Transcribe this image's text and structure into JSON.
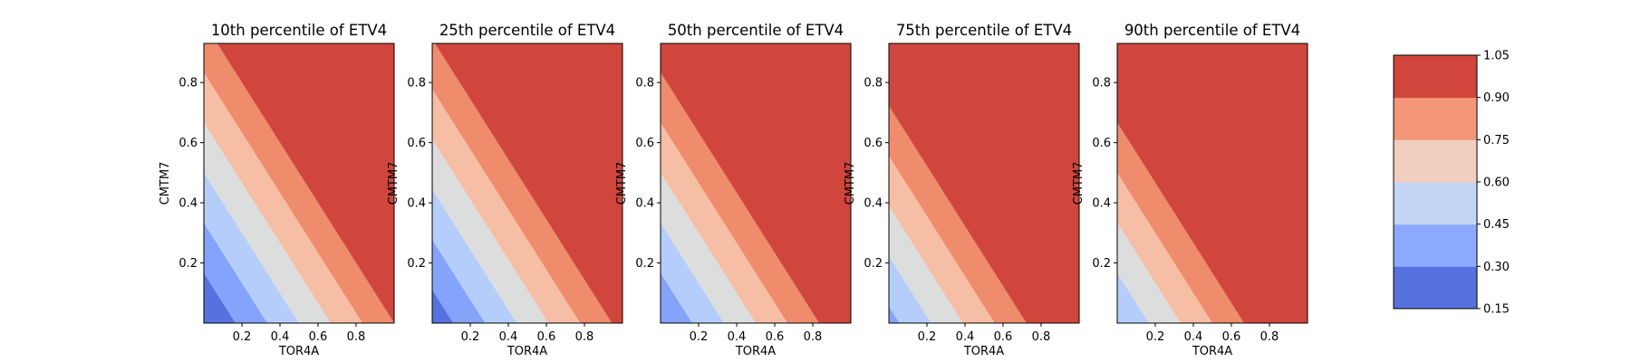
{
  "chart_data": {
    "type": "heatmap",
    "subtype": "filled-contour",
    "grid": false,
    "legend": "colorbar-right",
    "panels": [
      {
        "title": "10th percentile of ETV4",
        "xlabel": "TOR4A",
        "ylabel": "CMTM7",
        "xlim": [
          0.0,
          1.0
        ],
        "ylim": [
          0.0,
          0.93
        ],
        "field": {
          "a": 0.15,
          "bx": 0.9,
          "by": 0.9
        }
      },
      {
        "title": "25th percentile of ETV4",
        "xlabel": "TOR4A",
        "ylabel": "CMTM7",
        "xlim": [
          0.0,
          1.0
        ],
        "ylim": [
          0.0,
          0.93
        ],
        "field": {
          "a": 0.2,
          "bx": 0.9,
          "by": 0.9
        }
      },
      {
        "title": "50th percentile of ETV4",
        "xlabel": "TOR4A",
        "ylabel": "CMTM7",
        "xlim": [
          0.0,
          1.0
        ],
        "ylim": [
          0.0,
          0.93
        ],
        "field": {
          "a": 0.3,
          "bx": 0.9,
          "by": 0.9
        }
      },
      {
        "title": "75th percentile of ETV4",
        "xlabel": "TOR4A",
        "ylabel": "CMTM7",
        "xlim": [
          0.0,
          1.0
        ],
        "ylim": [
          0.0,
          0.93
        ],
        "field": {
          "a": 0.4,
          "bx": 0.9,
          "by": 0.9
        }
      },
      {
        "title": "90th percentile of ETV4",
        "xlabel": "TOR4A",
        "ylabel": "CMTM7",
        "xlim": [
          0.0,
          1.0
        ],
        "ylim": [
          0.0,
          0.93
        ],
        "field": {
          "a": 0.45,
          "bx": 0.9,
          "by": 0.9
        }
      }
    ],
    "xticks": [
      0.2,
      0.4,
      0.6,
      0.8
    ],
    "yticks": [
      0.2,
      0.4,
      0.6,
      0.8
    ],
    "levels": [
      0.15,
      0.3,
      0.45,
      0.6,
      0.75,
      0.9,
      1.05
    ],
    "colorbar_ticks": [
      "0.15",
      "0.30",
      "0.45",
      "0.60",
      "0.75",
      "0.90",
      "1.05"
    ],
    "level_colors": [
      "#5572df",
      "#8caafd",
      "#c4d5f3",
      "#f1cfbf",
      "#f39778",
      "#d0463c"
    ],
    "panel_level_colors": [
      "#5572df",
      "#84a3fb",
      "#b5cdfa",
      "#dcdddd",
      "#f6bea4",
      "#ef8c6c",
      "#d0463c"
    ]
  }
}
